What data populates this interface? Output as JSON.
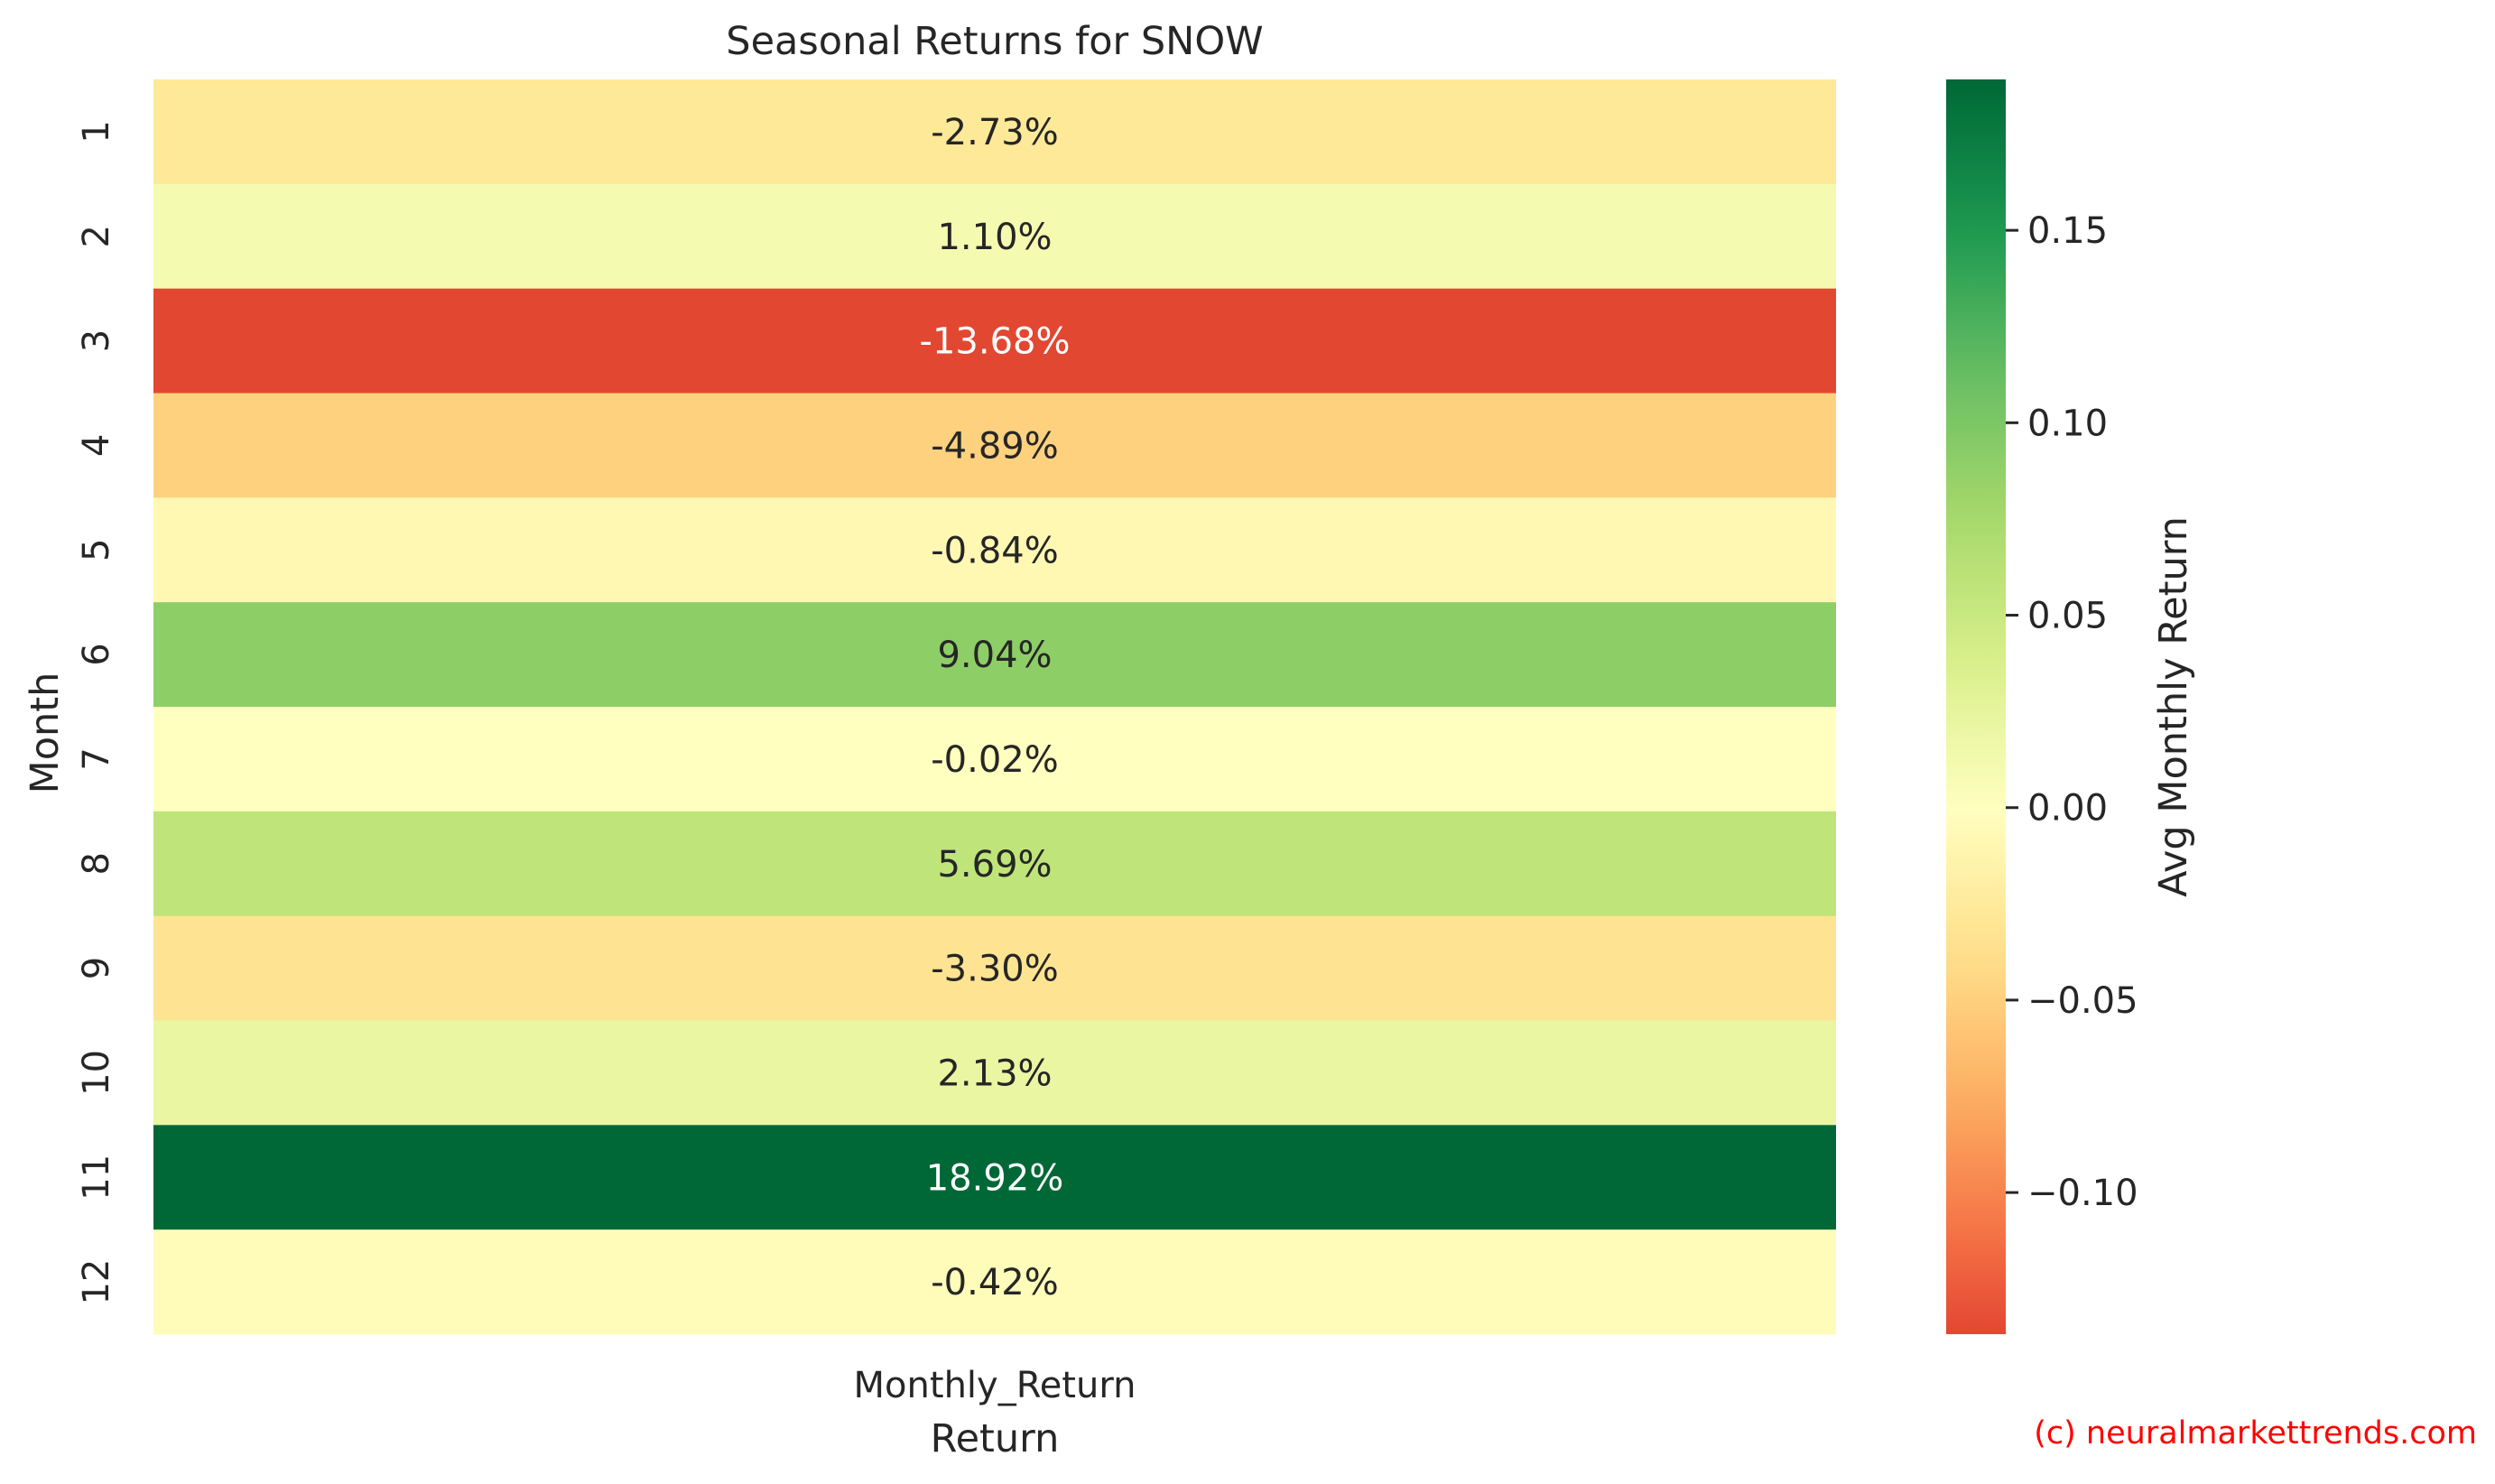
{
  "chart_data": {
    "type": "heatmap",
    "title": "Seasonal Returns for SNOW",
    "xlabel": "Return",
    "ylabel": "Month",
    "x_categories": [
      "Monthly_Return"
    ],
    "y_categories": [
      "1",
      "2",
      "3",
      "4",
      "5",
      "6",
      "7",
      "8",
      "9",
      "10",
      "11",
      "12"
    ],
    "values": [
      -0.0273,
      0.011,
      -0.1368,
      -0.0489,
      -0.0084,
      0.0904,
      -0.0002,
      0.0569,
      -0.033,
      0.0213,
      0.1892,
      -0.0042
    ],
    "annotations": [
      "-2.73%",
      "1.10%",
      "-13.68%",
      "-4.89%",
      "-0.84%",
      "9.04%",
      "-0.02%",
      "5.69%",
      "-3.30%",
      "2.13%",
      "18.92%",
      "-0.42%"
    ],
    "colorbar": {
      "label": "Avg Monthly Return",
      "colormap": "RdYlGn",
      "center": 0,
      "vmin": -0.1368,
      "vmax": 0.1892,
      "ticks": [
        -0.1,
        -0.05,
        0.0,
        0.05,
        0.1,
        0.15
      ],
      "tick_labels": [
        "−0.10",
        "−0.05",
        "0.00",
        "0.05",
        "0.10",
        "0.15"
      ]
    },
    "grid": false,
    "legend": "colorbar-right"
  },
  "watermark": "(c) neuralmarkettrends.com",
  "colors": {
    "watermark": "#ff0000",
    "text": "#262626",
    "light_text": "#ffffff"
  }
}
